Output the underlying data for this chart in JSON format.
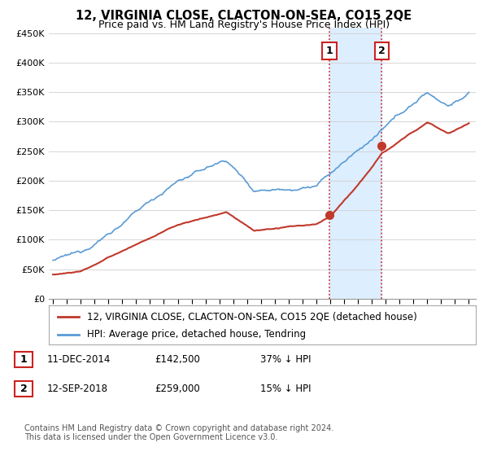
{
  "title": "12, VIRGINIA CLOSE, CLACTON-ON-SEA, CO15 2QE",
  "subtitle": "Price paid vs. HM Land Registry's House Price Index (HPI)",
  "ylabel_ticks": [
    "£0",
    "£50K",
    "£100K",
    "£150K",
    "£200K",
    "£250K",
    "£300K",
    "£350K",
    "£400K",
    "£450K"
  ],
  "ytick_values": [
    0,
    50000,
    100000,
    150000,
    200000,
    250000,
    300000,
    350000,
    400000,
    450000
  ],
  "ylim": [
    0,
    460000
  ],
  "xlim_start": 1994.7,
  "xlim_end": 2025.5,
  "sale1_date_num": 2014.94,
  "sale1_price": 142500,
  "sale1_label": "1",
  "sale2_date_num": 2018.71,
  "sale2_price": 259000,
  "sale2_label": "2",
  "legend_line1": "12, VIRGINIA CLOSE, CLACTON-ON-SEA, CO15 2QE (detached house)",
  "legend_line2": "HPI: Average price, detached house, Tendring",
  "sale1_row": "11-DEC-2014",
  "sale1_price_str": "£142,500",
  "sale1_pct": "37% ↓ HPI",
  "sale2_row": "12-SEP-2018",
  "sale2_price_str": "£259,000",
  "sale2_pct": "15% ↓ HPI",
  "footer": "Contains HM Land Registry data © Crown copyright and database right 2024.\nThis data is licensed under the Open Government Licence v3.0.",
  "hpi_color": "#5b9bd5",
  "price_color": "#c0392b",
  "shade_color": "#ddeeff",
  "bg_color": "#ffffff",
  "grid_color": "#d0d0d0",
  "label_box_color": "#cc2222",
  "title_fontsize": 10.5,
  "subtitle_fontsize": 9,
  "axis_fontsize": 8,
  "legend_fontsize": 8.5,
  "footer_fontsize": 7,
  "xtick_years": [
    1995,
    1996,
    1997,
    1998,
    1999,
    2000,
    2001,
    2002,
    2003,
    2004,
    2005,
    2006,
    2007,
    2008,
    2009,
    2010,
    2011,
    2012,
    2013,
    2014,
    2015,
    2016,
    2017,
    2018,
    2019,
    2020,
    2021,
    2022,
    2023,
    2024,
    2025
  ]
}
